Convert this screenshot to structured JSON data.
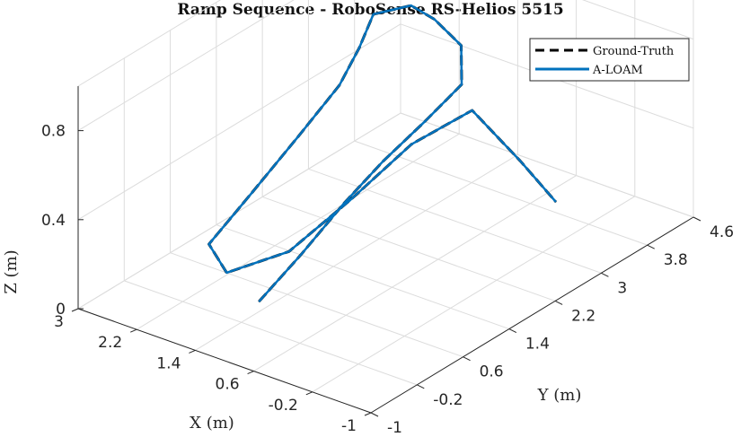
{
  "chart_data": {
    "type": "line",
    "title": "Ramp Sequence - RoboSense RS-Helios 5515",
    "xlabel": "X (m)",
    "ylabel": "Y (m)",
    "zlabel": "Z (m)",
    "xlim": [
      -1,
      3
    ],
    "ylim": [
      -1,
      4.6
    ],
    "zlim": [
      0,
      1
    ],
    "x_ticks": [
      "3",
      "2.2",
      "1.4",
      "0.6",
      "-0.2",
      "-1"
    ],
    "y_ticks": [
      "-1",
      "-0.2",
      "0.6",
      "1.4",
      "2.2",
      "3",
      "3.8",
      "4.6"
    ],
    "z_ticks": [
      "0",
      "0.4",
      "0.8"
    ],
    "grid": true,
    "legend_position": "top-right",
    "series": [
      {
        "name": "Ground-Truth",
        "style": "dashed",
        "color": "#000000",
        "points": [
          [
            0.6,
            -0.9,
            0.3
          ],
          [
            0.9,
            0.2,
            0.3
          ],
          [
            1.1,
            1.2,
            0.35
          ],
          [
            1.2,
            2.0,
            0.4
          ],
          [
            1.25,
            2.8,
            0.45
          ],
          [
            1.3,
            3.5,
            0.5
          ],
          [
            1.7,
            4.0,
            0.55
          ],
          [
            2.3,
            4.3,
            0.55
          ],
          [
            2.7,
            4.4,
            0.55
          ],
          [
            2.9,
            4.0,
            0.55
          ],
          [
            2.7,
            3.5,
            0.5
          ],
          [
            2.5,
            2.9,
            0.45
          ],
          [
            2.35,
            2.0,
            0.38
          ],
          [
            2.2,
            1.0,
            0.3
          ],
          [
            2.0,
            0.0,
            0.25
          ],
          [
            1.6,
            -0.2,
            0.2
          ],
          [
            1.3,
            0.5,
            0.22
          ],
          [
            1.25,
            1.5,
            0.3
          ],
          [
            1.2,
            2.5,
            0.4
          ],
          [
            1.0,
            3.3,
            0.45
          ],
          [
            0.5,
            3.5,
            0.25
          ],
          [
            0.1,
            3.6,
            0.1
          ]
        ]
      },
      {
        "name": "A-LOAM",
        "style": "solid",
        "color": "#0072BD",
        "points": [
          [
            0.6,
            -0.9,
            0.3
          ],
          [
            0.9,
            0.2,
            0.3
          ],
          [
            1.1,
            1.2,
            0.35
          ],
          [
            1.2,
            2.0,
            0.4
          ],
          [
            1.25,
            2.8,
            0.45
          ],
          [
            1.3,
            3.5,
            0.5
          ],
          [
            1.7,
            4.0,
            0.55
          ],
          [
            2.3,
            4.3,
            0.55
          ],
          [
            2.7,
            4.4,
            0.55
          ],
          [
            2.9,
            4.0,
            0.55
          ],
          [
            2.7,
            3.5,
            0.5
          ],
          [
            2.5,
            2.9,
            0.45
          ],
          [
            2.35,
            2.0,
            0.38
          ],
          [
            2.2,
            1.0,
            0.3
          ],
          [
            2.0,
            0.0,
            0.25
          ],
          [
            1.6,
            -0.2,
            0.2
          ],
          [
            1.3,
            0.5,
            0.22
          ],
          [
            1.25,
            1.5,
            0.3
          ],
          [
            1.2,
            2.5,
            0.4
          ],
          [
            1.0,
            3.3,
            0.45
          ],
          [
            0.5,
            3.5,
            0.25
          ],
          [
            0.1,
            3.6,
            0.1
          ]
        ]
      }
    ]
  }
}
